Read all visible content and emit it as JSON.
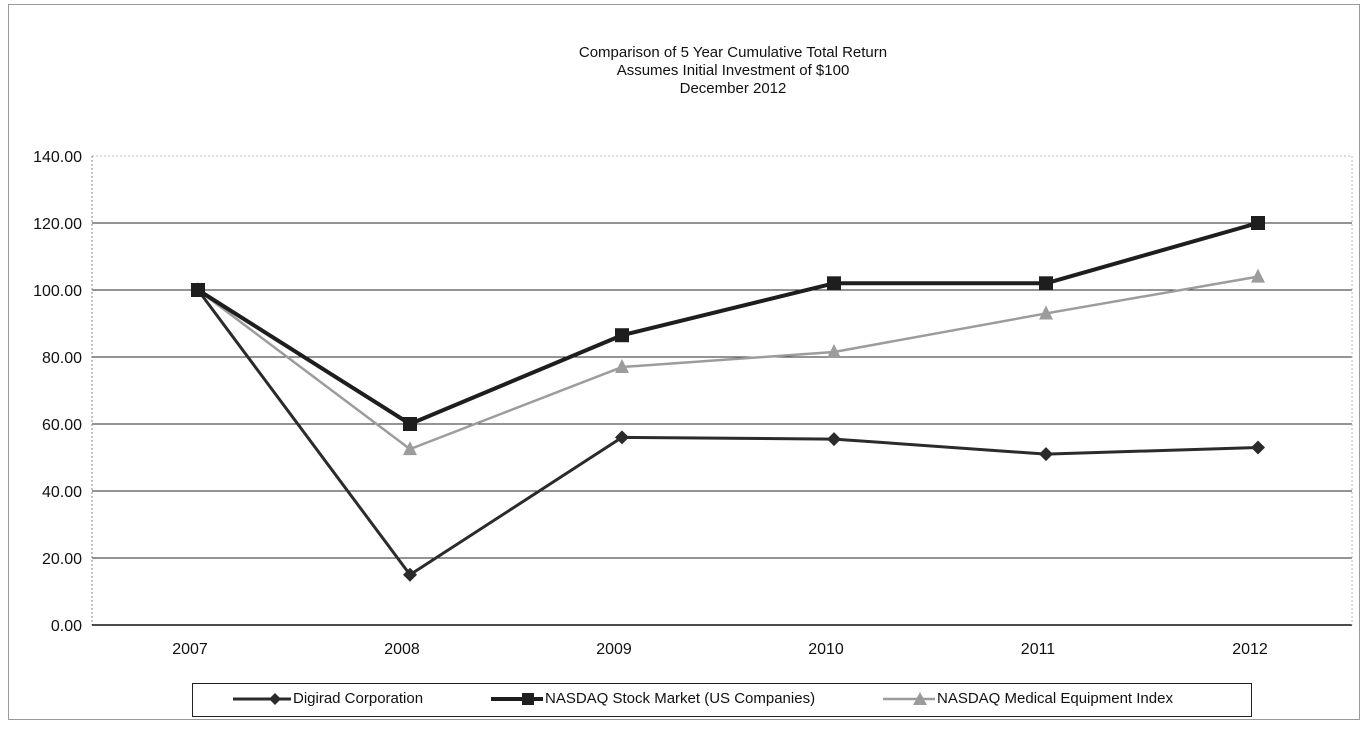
{
  "chart_data": {
    "type": "line",
    "title": [
      "Comparison of 5 Year Cumulative Total Return",
      "Assumes Initial Investment of $100",
      "December 2012"
    ],
    "categories": [
      "2007",
      "2008",
      "2009",
      "2010",
      "2011",
      "2012"
    ],
    "yticks": [
      "0.00",
      "20.00",
      "40.00",
      "60.00",
      "80.00",
      "100.00",
      "120.00",
      "140.00"
    ],
    "ylim": [
      0,
      140
    ],
    "grid": true,
    "legend_position": "bottom",
    "series": [
      {
        "name": "Digirad Corporation",
        "values": [
          100,
          15,
          56,
          55.5,
          51,
          53
        ],
        "color": "#2b2b2b",
        "marker": "diamond",
        "width": 3
      },
      {
        "name": "NASDAQ Stock Market (US Companies)",
        "values": [
          100,
          60,
          86.5,
          102,
          102,
          120
        ],
        "color": "#1e1e1e",
        "marker": "square",
        "width": 4
      },
      {
        "name": "NASDAQ Medical Equipment Index",
        "values": [
          100,
          52.5,
          77,
          81.5,
          93,
          104
        ],
        "color": "#9c9c9c",
        "marker": "triangle",
        "width": 2.5
      }
    ]
  }
}
